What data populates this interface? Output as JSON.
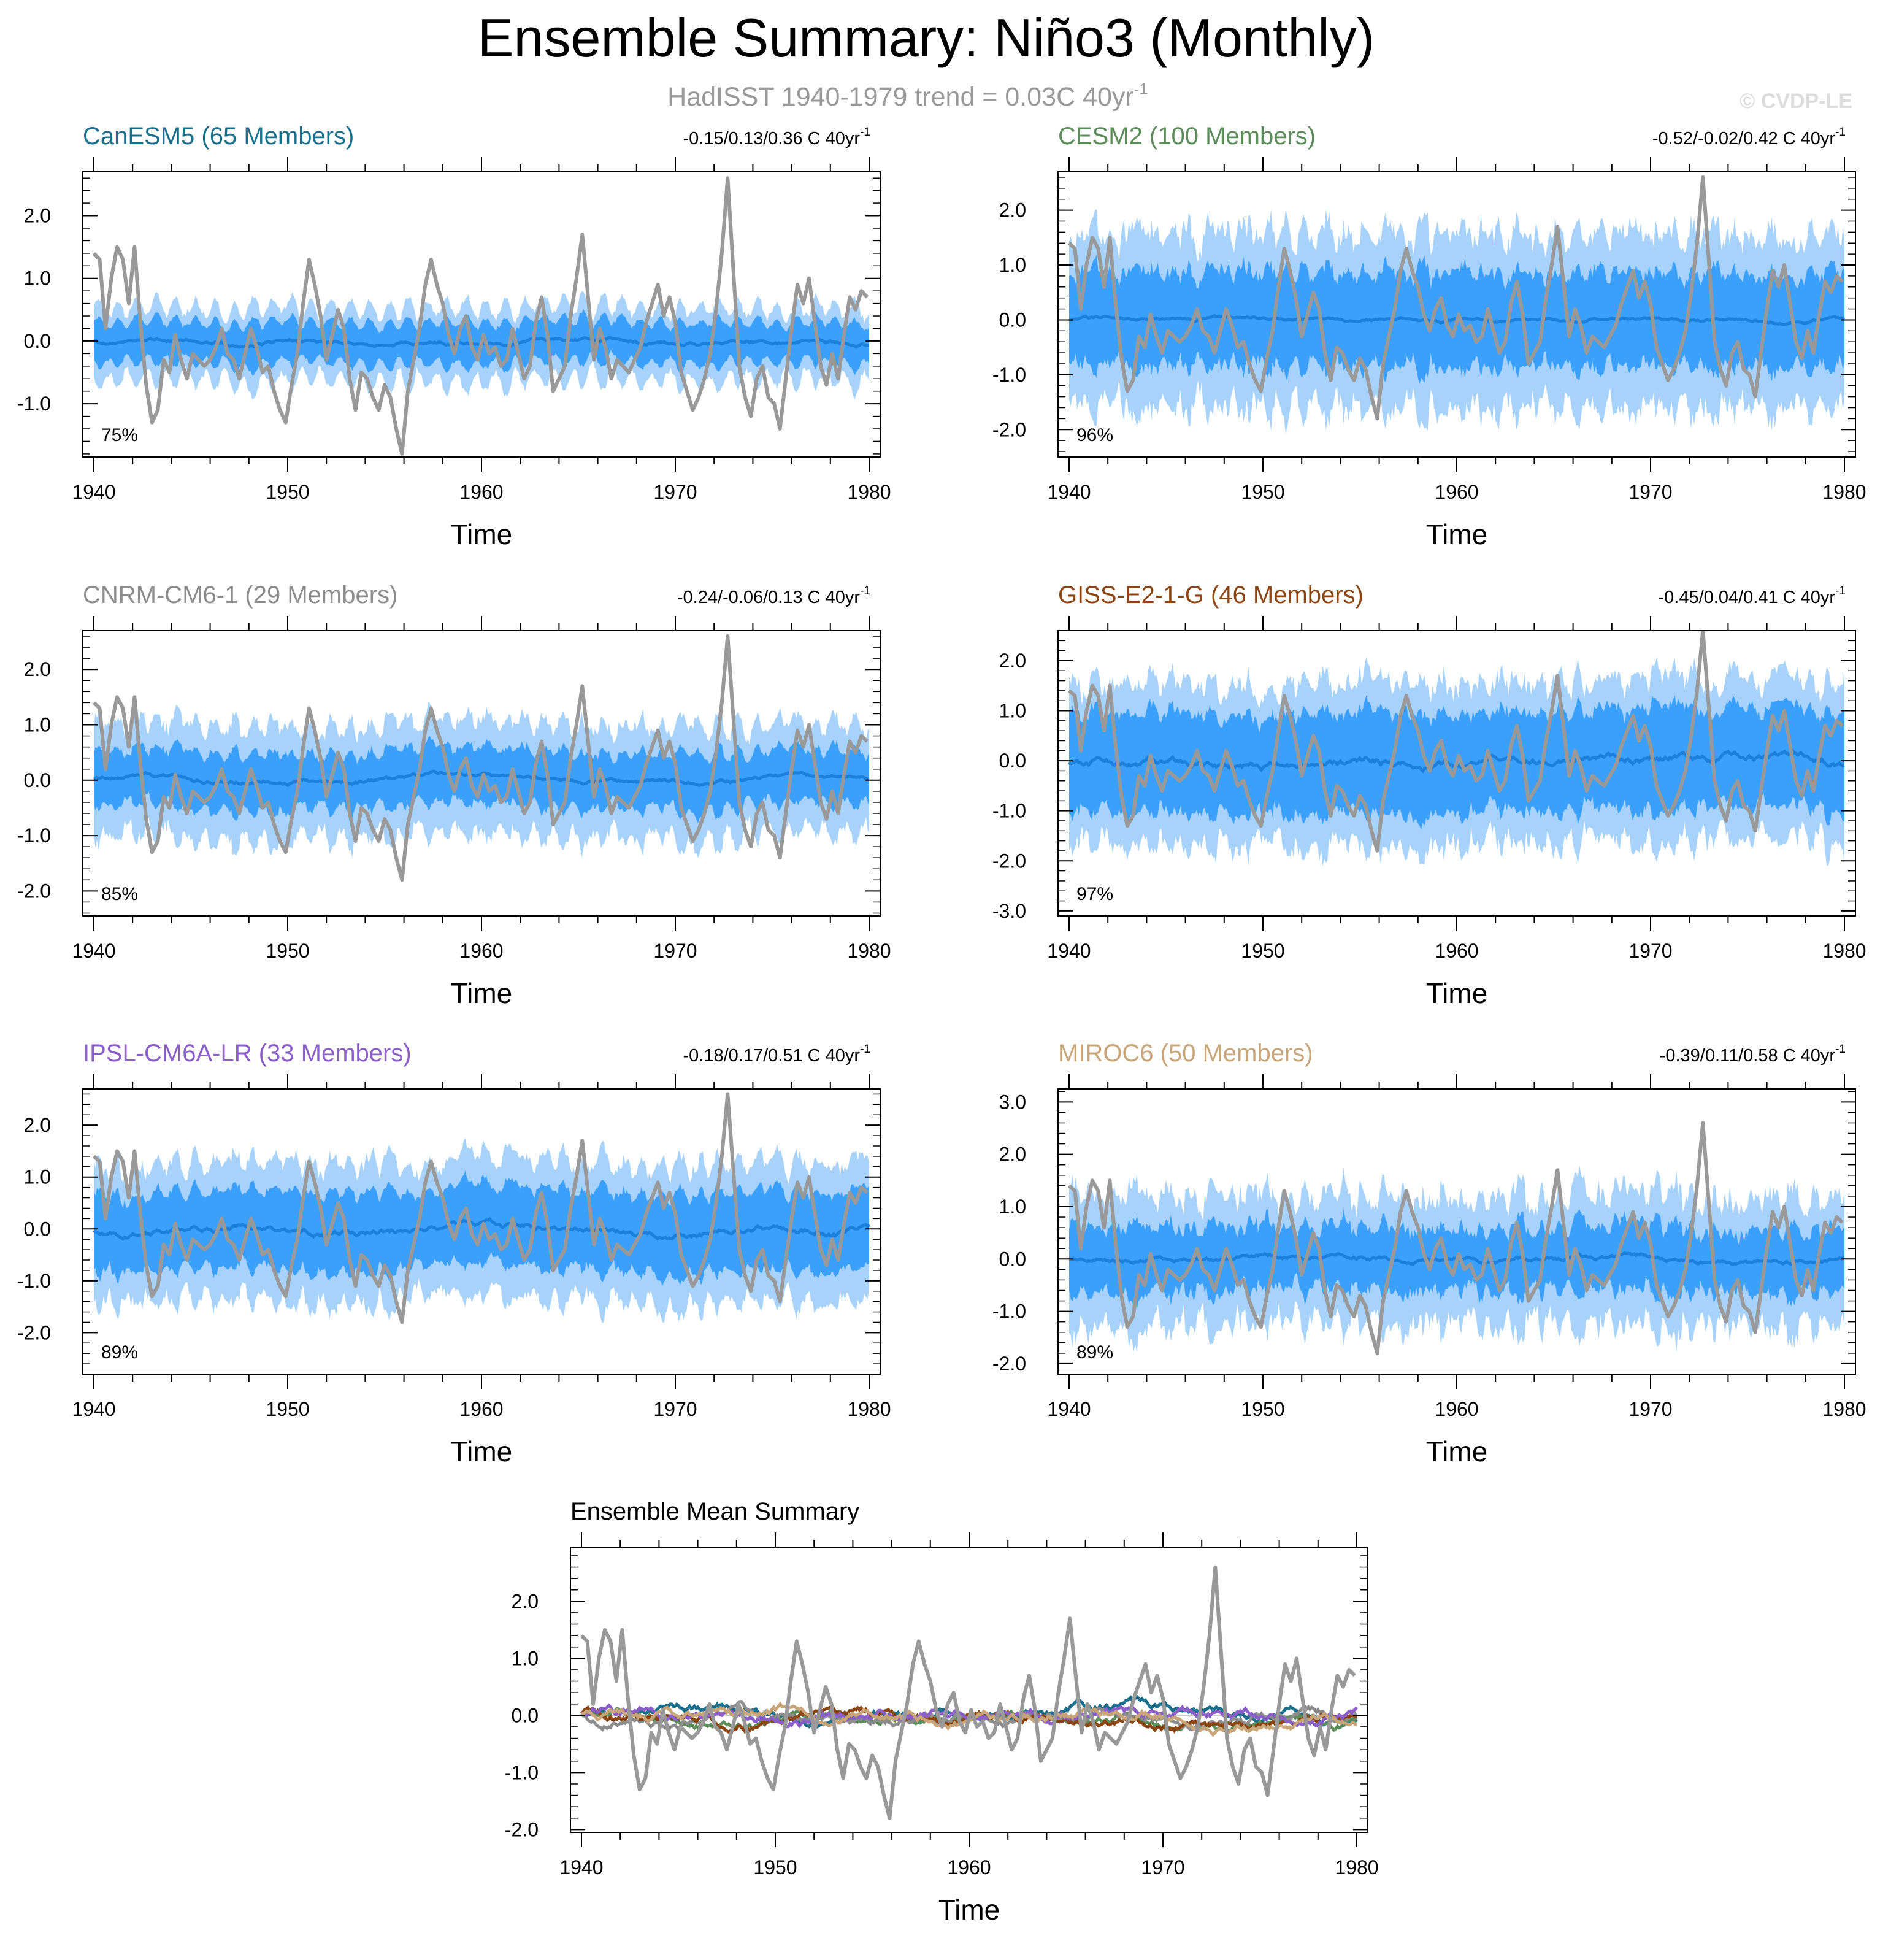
{
  "figure": {
    "title": "Ensemble Summary: Niño3 (Monthly)",
    "subtitle_prefix": "HadISST 1940-1979 trend = 0.03C 40yr",
    "subtitle_sup": "-1",
    "watermark": "© CVDP-LE"
  },
  "colors": {
    "outer_band": "#a6d2fb",
    "inner_band": "#3aa0fb",
    "ens_mean": "#1c7fdc",
    "obs": "#999999",
    "axis": "#000000"
  },
  "chart_data": [
    {
      "type": "line",
      "name": "CanESM5",
      "title": "CanESM5 (65 Members)",
      "title_color": "#1a6f8c",
      "trend_text": "-0.15/0.13/0.36 C 40yr",
      "trend_sup": "-1",
      "percent": "75%",
      "xlabel": "Time",
      "xlim": [
        1940,
        1980
      ],
      "xticks": [
        "1940",
        "1950",
        "1960",
        "1970",
        "1980"
      ],
      "ylim": [
        -1.85,
        2.7
      ],
      "yticks": [
        "2.0",
        "1.0",
        "0.0",
        "-1.0"
      ],
      "ytick_values": [
        2.0,
        1.0,
        0.0,
        -1.0
      ],
      "band_outer": 0.55,
      "band_inner": 0.32,
      "spread_amp": 0.12,
      "mean_amp": 0.1,
      "seed": 11
    },
    {
      "type": "line",
      "name": "CESM2",
      "title": "CESM2 (100 Members)",
      "title_color": "#5b8c5a",
      "trend_text": "-0.52/-0.02/0.42 C 40yr",
      "trend_sup": "-1",
      "percent": "96%",
      "xlabel": "Time",
      "xlim": [
        1940,
        1980
      ],
      "xticks": [
        "1940",
        "1950",
        "1960",
        "1970",
        "1980"
      ],
      "ylim": [
        -2.5,
        2.7
      ],
      "yticks": [
        "2.0",
        "1.0",
        "0.0",
        "-1.0",
        "-2.0"
      ],
      "ytick_values": [
        2.0,
        1.0,
        0.0,
        -1.0,
        -2.0
      ],
      "band_outer": 1.55,
      "band_inner": 0.85,
      "spread_amp": 0.45,
      "mean_amp": 0.1,
      "seed": 23
    },
    {
      "type": "line",
      "name": "CNRM-CM6-1",
      "title": "CNRM-CM6-1 (29 Members)",
      "title_color": "#8c8c8c",
      "trend_text": "-0.24/-0.06/0.13 C 40yr",
      "trend_sup": "-1",
      "percent": "85%",
      "xlabel": "Time",
      "xlim": [
        1940,
        1980
      ],
      "xticks": [
        "1940",
        "1950",
        "1960",
        "1970",
        "1980"
      ],
      "ylim": [
        -2.45,
        2.7
      ],
      "yticks": [
        "2.0",
        "1.0",
        "0.0",
        "-1.0",
        "-2.0"
      ],
      "ytick_values": [
        2.0,
        1.0,
        0.0,
        -1.0,
        -2.0
      ],
      "band_outer": 1.0,
      "band_inner": 0.5,
      "spread_amp": 0.25,
      "mean_amp": 0.12,
      "seed": 37
    },
    {
      "type": "line",
      "name": "GISS-E2-1-G",
      "title": "GISS-E2-1-G (46 Members)",
      "title_color": "#8b4513",
      "trend_text": "-0.45/0.04/0.41 C 40yr",
      "trend_sup": "-1",
      "percent": "97%",
      "xlabel": "Time",
      "xlim": [
        1940,
        1980
      ],
      "xticks": [
        "1940",
        "1950",
        "1960",
        "1970",
        "1980"
      ],
      "ylim": [
        -3.1,
        2.6
      ],
      "yticks": [
        "2.0",
        "1.0",
        "0.0",
        "-1.0",
        "-2.0",
        "-3.0"
      ],
      "ytick_values": [
        2.0,
        1.0,
        0.0,
        -1.0,
        -2.0,
        -3.0
      ],
      "band_outer": 1.6,
      "band_inner": 1.0,
      "spread_amp": 0.4,
      "mean_amp": 0.25,
      "seed": 41
    },
    {
      "type": "line",
      "name": "IPSL-CM6A-LR",
      "title": "IPSL-CM6A-LR (33 Members)",
      "title_color": "#8a5fc9",
      "trend_text": "-0.18/0.17/0.51 C 40yr",
      "trend_sup": "-1",
      "percent": "89%",
      "xlabel": "Time",
      "xlim": [
        1940,
        1980
      ],
      "xticks": [
        "1940",
        "1950",
        "1960",
        "1970",
        "1980"
      ],
      "ylim": [
        -2.8,
        2.7
      ],
      "yticks": [
        "2.0",
        "1.0",
        "0.0",
        "-1.0",
        "-2.0"
      ],
      "ytick_values": [
        2.0,
        1.0,
        0.0,
        -1.0,
        -2.0
      ],
      "band_outer": 1.3,
      "band_inner": 0.75,
      "spread_amp": 0.3,
      "mean_amp": 0.2,
      "seed": 53
    },
    {
      "type": "line",
      "name": "MIROC6",
      "title": "MIROC6 (50 Members)",
      "title_color": "#c9a57a",
      "trend_text": "-0.39/0.11/0.58 C 40yr",
      "trend_sup": "-1",
      "percent": "89%",
      "xlabel": "Time",
      "xlim": [
        1940,
        1980
      ],
      "xticks": [
        "1940",
        "1950",
        "1960",
        "1970",
        "1980"
      ],
      "ylim": [
        -2.2,
        3.25
      ],
      "yticks": [
        "3.0",
        "2.0",
        "1.0",
        "0.0",
        "-1.0",
        "-2.0"
      ],
      "ytick_values": [
        3.0,
        2.0,
        1.0,
        0.0,
        -1.0,
        -2.0
      ],
      "band_outer": 1.2,
      "band_inner": 0.6,
      "spread_amp": 0.45,
      "mean_amp": 0.15,
      "seed": 67
    },
    {
      "type": "line",
      "name": "Ensemble Mean Summary",
      "title": "Ensemble Mean Summary",
      "title_color": "#000000",
      "xlabel": "Time",
      "xlim": [
        1940,
        1980
      ],
      "xticks": [
        "1940",
        "1950",
        "1960",
        "1970",
        "1980"
      ],
      "ylim": [
        -2.05,
        2.95
      ],
      "yticks": [
        "2.0",
        "1.0",
        "0.0",
        "-1.0",
        "-2.0"
      ],
      "ytick_values": [
        2.0,
        1.0,
        0.0,
        -1.0,
        -2.0
      ],
      "series": [
        {
          "name": "HadISST",
          "color": "#999999"
        },
        {
          "name": "CanESM5",
          "color": "#1a6f8c"
        },
        {
          "name": "CESM2",
          "color": "#5b8c5a"
        },
        {
          "name": "CNRM-CM6-1",
          "color": "#8c8c8c"
        },
        {
          "name": "GISS-E2-1-G",
          "color": "#8b4513"
        },
        {
          "name": "IPSL-CM6A-LR",
          "color": "#8a5fc9"
        },
        {
          "name": "MIROC6",
          "color": "#c9a57a"
        }
      ]
    }
  ],
  "observations": {
    "name": "HadISST",
    "x": [
      1940.0,
      1940.3,
      1940.6,
      1940.9,
      1941.2,
      1941.5,
      1941.8,
      1942.1,
      1942.4,
      1942.7,
      1943.0,
      1943.3,
      1943.6,
      1943.9,
      1944.2,
      1944.5,
      1944.8,
      1945.1,
      1945.4,
      1945.7,
      1946.0,
      1946.3,
      1946.6,
      1946.9,
      1947.2,
      1947.5,
      1947.8,
      1948.1,
      1948.4,
      1948.7,
      1949.0,
      1949.3,
      1949.6,
      1949.9,
      1950.2,
      1950.5,
      1950.8,
      1951.1,
      1951.4,
      1951.7,
      1952.0,
      1952.3,
      1952.6,
      1952.9,
      1953.2,
      1953.5,
      1953.8,
      1954.1,
      1954.4,
      1954.7,
      1955.0,
      1955.3,
      1955.6,
      1955.9,
      1956.2,
      1956.5,
      1956.8,
      1957.1,
      1957.4,
      1957.7,
      1958.0,
      1958.3,
      1958.6,
      1958.9,
      1959.2,
      1959.5,
      1959.8,
      1960.1,
      1960.4,
      1960.7,
      1961.0,
      1961.3,
      1961.6,
      1961.9,
      1962.2,
      1962.5,
      1962.8,
      1963.1,
      1963.4,
      1963.7,
      1964.0,
      1964.3,
      1964.6,
      1964.9,
      1965.2,
      1965.5,
      1965.8,
      1966.1,
      1966.4,
      1966.7,
      1967.0,
      1967.3,
      1967.6,
      1967.9,
      1968.2,
      1968.5,
      1968.8,
      1969.1,
      1969.4,
      1969.7,
      1970.0,
      1970.3,
      1970.6,
      1970.9,
      1971.2,
      1971.5,
      1971.8,
      1972.1,
      1972.4,
      1972.7,
      1973.0,
      1973.3,
      1973.6,
      1973.9,
      1974.2,
      1974.5,
      1974.8,
      1975.1,
      1975.4,
      1975.7,
      1976.0,
      1976.3,
      1976.6,
      1976.9,
      1977.2,
      1977.5,
      1977.8,
      1978.1,
      1978.4,
      1978.7,
      1979.0,
      1979.3,
      1979.6,
      1979.9
    ],
    "y": [
      1.4,
      1.3,
      0.2,
      1.0,
      1.5,
      1.3,
      0.6,
      1.5,
      0.3,
      -0.7,
      -1.3,
      -1.1,
      -0.3,
      -0.5,
      0.1,
      -0.3,
      -0.6,
      -0.2,
      -0.3,
      -0.4,
      -0.3,
      -0.1,
      0.2,
      -0.2,
      -0.3,
      -0.6,
      -0.2,
      0.2,
      -0.1,
      -0.5,
      -0.4,
      -0.8,
      -1.1,
      -1.3,
      -0.7,
      -0.2,
      0.6,
      1.3,
      0.9,
      0.4,
      -0.3,
      0.1,
      0.5,
      0.2,
      -0.6,
      -1.1,
      -0.5,
      -0.6,
      -0.9,
      -1.1,
      -0.7,
      -0.9,
      -1.4,
      -1.8,
      -0.8,
      -0.3,
      0.2,
      0.9,
      1.3,
      0.9,
      0.6,
      0.1,
      -0.2,
      0.2,
      0.4,
      -0.1,
      -0.3,
      0.1,
      -0.2,
      -0.1,
      -0.4,
      -0.3,
      0.2,
      -0.2,
      -0.6,
      -0.4,
      0.3,
      0.7,
      0.1,
      -0.8,
      -0.6,
      -0.4,
      0.4,
      1.0,
      1.7,
      0.7,
      -0.3,
      0.2,
      -0.1,
      -0.6,
      -0.3,
      -0.4,
      -0.5,
      -0.3,
      -0.1,
      0.3,
      0.6,
      0.9,
      0.4,
      0.7,
      0.3,
      -0.5,
      -0.8,
      -1.1,
      -0.9,
      -0.6,
      -0.2,
      0.5,
      1.4,
      2.6,
      1.1,
      -0.4,
      -0.9,
      -1.2,
      -0.6,
      -0.4,
      -0.9,
      -1.0,
      -1.4,
      -0.6,
      0.2,
      0.9,
      0.6,
      1.0,
      0.3,
      -0.4,
      -0.7,
      -0.2,
      -0.6,
      0.1,
      0.7,
      0.5,
      0.8,
      0.7
    ]
  },
  "axis_labels": {
    "time": "Time"
  }
}
